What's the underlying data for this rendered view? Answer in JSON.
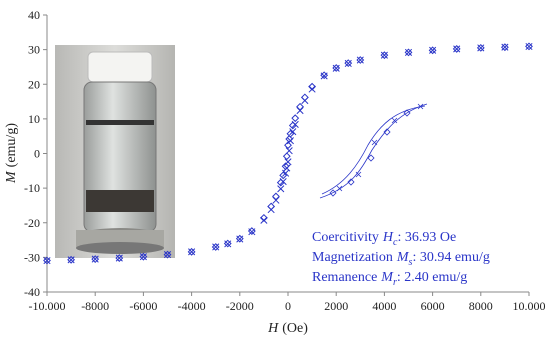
{
  "chart_data": {
    "type": "scatter",
    "x_label": {
      "symbol": "H",
      "unit": "(Oe)"
    },
    "y_label": {
      "symbol": "M",
      "unit": "(emu/g)"
    },
    "x": [
      -10000,
      -9000,
      -8000,
      -7000,
      -6000,
      -5000,
      -4000,
      -3000,
      -2500,
      -2000,
      -1500,
      -1000,
      -700,
      -500,
      -300,
      -200,
      -100,
      -50,
      0,
      50,
      100,
      200,
      300,
      500,
      700,
      1000,
      1500,
      2000,
      2500,
      3000,
      4000,
      5000,
      6000,
      7000,
      8000,
      9000,
      10000
    ],
    "series": [
      {
        "color": "#2a35c8",
        "marker": "diamond",
        "values": [
          -30.9,
          -30.7,
          -30.5,
          -30.2,
          -29.8,
          -29.2,
          -28.4,
          -27.0,
          -26.0,
          -24.6,
          -22.4,
          -18.6,
          -15.3,
          -12.4,
          -8.4,
          -6.3,
          -3.7,
          -0.8,
          2.4,
          4.2,
          5.7,
          8.1,
          10.2,
          13.5,
          16.2,
          19.3,
          22.6,
          24.7,
          26.1,
          27.0,
          28.4,
          29.2,
          29.8,
          30.2,
          30.5,
          30.7,
          30.94
        ]
      },
      {
        "color": "#2a35c8",
        "marker": "cross",
        "values": [
          -30.94,
          -30.7,
          -30.5,
          -30.2,
          -29.8,
          -29.2,
          -28.4,
          -27.0,
          -26.1,
          -24.7,
          -22.6,
          -19.3,
          -16.2,
          -13.5,
          -10.2,
          -8.1,
          -5.7,
          -4.2,
          -2.4,
          0.8,
          3.7,
          6.3,
          8.4,
          12.4,
          15.3,
          18.6,
          22.4,
          24.6,
          26.0,
          27.0,
          28.4,
          29.2,
          29.8,
          30.2,
          30.5,
          30.7,
          30.9
        ]
      }
    ],
    "xlim": [
      -10000,
      10000
    ],
    "xticks": [
      {
        "value": -10000,
        "label": "-10.000"
      },
      -8000,
      -6000,
      -4000,
      -2000,
      0,
      2000,
      4000,
      6000,
      8000,
      {
        "value": 10000,
        "label": "10.000"
      }
    ],
    "ylim": [
      -40,
      40
    ],
    "yticks": [
      -40,
      -30,
      -20,
      -10,
      0,
      10,
      20,
      30,
      40
    ],
    "annotations": [
      {
        "label": "Coercitivity",
        "symbol": "H",
        "subscript": "c",
        "value": ": 36.93 Oe"
      },
      {
        "label": "Magnetization",
        "symbol": "M",
        "subscript": "s",
        "value": ": 30.94 emu/g"
      },
      {
        "label": "Remanence",
        "symbol": "M",
        "subscript": "r",
        "value": ": 2.40 emu/g"
      }
    ]
  }
}
